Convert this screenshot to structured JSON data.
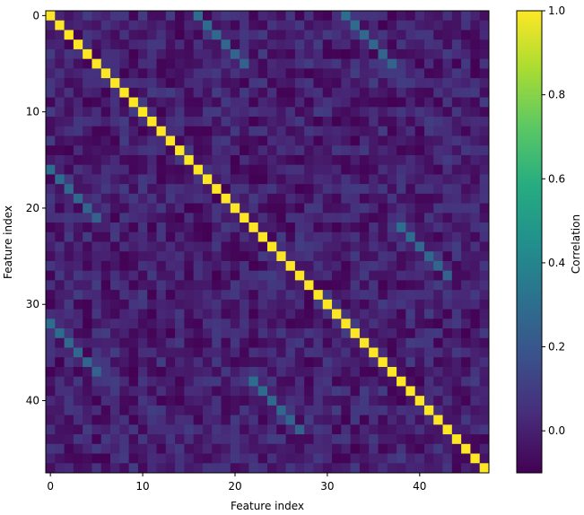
{
  "chart_data": {
    "type": "heatmap",
    "title": "",
    "xlabel": "Feature index",
    "ylabel": "Feature index",
    "size": 48,
    "x_ticks": [
      0,
      10,
      20,
      30,
      40
    ],
    "y_ticks": [
      0,
      10,
      20,
      30,
      40
    ],
    "xlim": [
      -0.5,
      47.5
    ],
    "ylim": [
      47.5,
      -0.5
    ],
    "colormap": "viridis",
    "colorbar": {
      "label": "Correlation",
      "range": [
        -0.1,
        1.0
      ],
      "ticks": [
        "0.0",
        "0.2",
        "0.4",
        "0.6",
        "0.8",
        "1.0"
      ]
    },
    "structure": {
      "diagonal_value": 1.0,
      "background_value_range": [
        -0.1,
        0.1
      ],
      "correlated_bands": [
        {
          "rows": [
            0,
            5
          ],
          "cols": [
            16,
            21
          ],
          "value_start": 0.3,
          "value_end": 0.25
        },
        {
          "rows": [
            0,
            5
          ],
          "cols": [
            32,
            37
          ],
          "value_start": 0.3,
          "value_end": 0.25
        },
        {
          "rows": [
            16,
            21
          ],
          "cols": [
            0,
            5
          ],
          "value_start": 0.3,
          "value_end": 0.25
        },
        {
          "rows": [
            22,
            27
          ],
          "cols": [
            38,
            43
          ],
          "value_start": 0.3,
          "value_end": 0.25
        },
        {
          "rows": [
            32,
            37
          ],
          "cols": [
            0,
            5
          ],
          "value_start": 0.3,
          "value_end": 0.25
        },
        {
          "rows": [
            38,
            43
          ],
          "cols": [
            22,
            27
          ],
          "value_start": 0.3,
          "value_end": 0.25
        }
      ]
    }
  }
}
